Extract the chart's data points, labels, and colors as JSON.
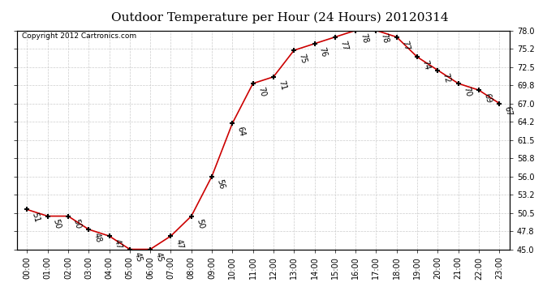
{
  "title": "Outdoor Temperature per Hour (24 Hours) 20120314",
  "copyright": "Copyright 2012 Cartronics.com",
  "hours": [
    "00:00",
    "01:00",
    "02:00",
    "03:00",
    "04:00",
    "05:00",
    "06:00",
    "07:00",
    "08:00",
    "09:00",
    "10:00",
    "11:00",
    "12:00",
    "13:00",
    "14:00",
    "15:00",
    "16:00",
    "17:00",
    "18:00",
    "19:00",
    "20:00",
    "21:00",
    "22:00",
    "23:00"
  ],
  "temps": [
    51,
    50,
    50,
    48,
    47,
    45,
    45,
    47,
    50,
    56,
    64,
    70,
    71,
    75,
    76,
    77,
    78,
    78,
    77,
    74,
    72,
    70,
    69,
    67
  ],
  "ylim": [
    45.0,
    78.0
  ],
  "yticks": [
    45.0,
    47.8,
    50.5,
    53.2,
    56.0,
    58.8,
    61.5,
    64.2,
    67.0,
    69.8,
    72.5,
    75.2,
    78.0
  ],
  "ytick_labels": [
    "45.0",
    "47.8",
    "50.5",
    "53.2",
    "56.0",
    "58.8",
    "61.5",
    "64.2",
    "67.0",
    "69.8",
    "72.5",
    "75.2",
    "78.0"
  ],
  "line_color": "#cc0000",
  "marker": "+",
  "bg_color": "#ffffff",
  "grid_color": "#cccccc",
  "title_fontsize": 11,
  "label_fontsize": 7,
  "annotation_fontsize": 7,
  "annotation_rotation": -75
}
